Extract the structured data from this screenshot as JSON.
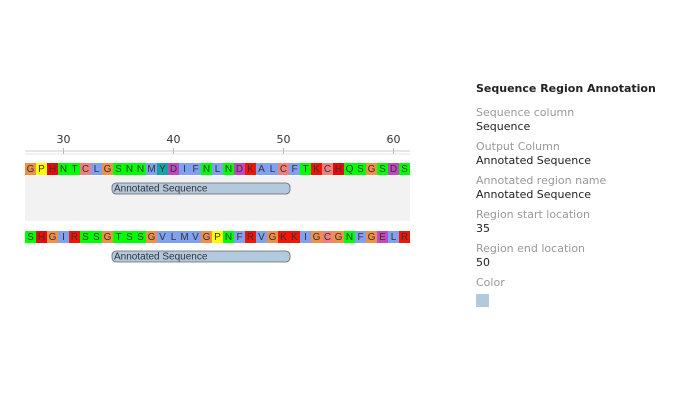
{
  "sequence": {
    "start": 27,
    "ruler_ticks": [
      30,
      40,
      50,
      60
    ],
    "rows": [
      {
        "residues": [
          "G",
          "P",
          "H",
          "N",
          "T",
          "C",
          "L",
          "G",
          "S",
          "N",
          "N",
          "M",
          "Y",
          "D",
          "I",
          "F",
          "N",
          "L",
          "N",
          "D",
          "K",
          "A",
          "L",
          "C",
          "F",
          "T",
          "K",
          "C",
          "H",
          "Q",
          "S",
          "G",
          "S",
          "D",
          "S"
        ],
        "annotation": "Annotated Sequence"
      },
      {
        "residues": [
          "S",
          "H",
          "G",
          "I",
          "R",
          "S",
          "S",
          "G",
          "T",
          "S",
          "S",
          "G",
          "V",
          "L",
          "M",
          "V",
          "G",
          "P",
          "N",
          "F",
          "R",
          "V",
          "G",
          "K",
          "K",
          "I",
          "G",
          "C",
          "G",
          "N",
          "F",
          "G",
          "E",
          "L",
          "R"
        ],
        "annotation": "Annotated Sequence"
      }
    ]
  },
  "panel": {
    "title": "Sequence Region Annotation",
    "fields": [
      {
        "label": "Sequence column",
        "value": "Sequence"
      },
      {
        "label": "Output Column",
        "value": "Annotated Sequence"
      },
      {
        "label": "Annotated region name",
        "value": "Annotated Sequence"
      },
      {
        "label": "Region start location",
        "value": 35
      },
      {
        "label": "Region end location",
        "value": 50
      }
    ],
    "color_label": "Color",
    "color": "#b3c9de"
  }
}
